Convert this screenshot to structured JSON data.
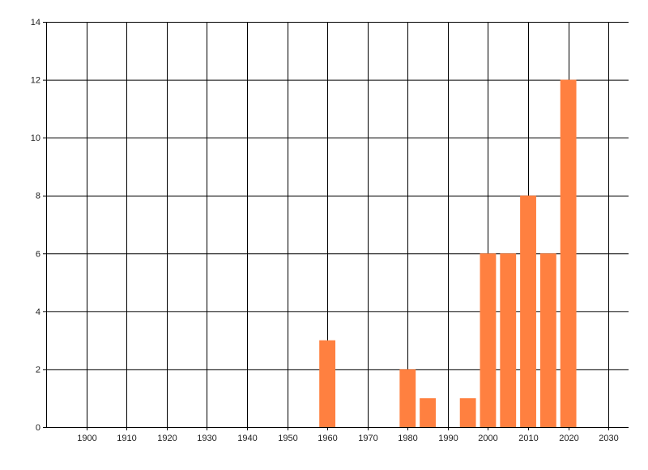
{
  "chart_data": {
    "type": "bar",
    "title": "",
    "xlabel": "",
    "ylabel": "",
    "x": [
      1960,
      1980,
      1985,
      1995,
      2000,
      2005,
      2010,
      2015,
      2020
    ],
    "values": [
      3,
      2,
      1,
      1,
      6,
      6,
      8,
      6,
      12
    ],
    "bar_width_years": 4,
    "xlim": [
      1890,
      2035
    ],
    "ylim": [
      0,
      14
    ],
    "xticks": [
      1900,
      1910,
      1920,
      1930,
      1940,
      1950,
      1960,
      1970,
      1980,
      1990,
      2000,
      2010,
      2020,
      2030
    ],
    "yticks": [
      0,
      2,
      4,
      6,
      8,
      10,
      12,
      14
    ],
    "grid": true,
    "bar_color": "#FF8040",
    "grid_color": "#000000"
  }
}
